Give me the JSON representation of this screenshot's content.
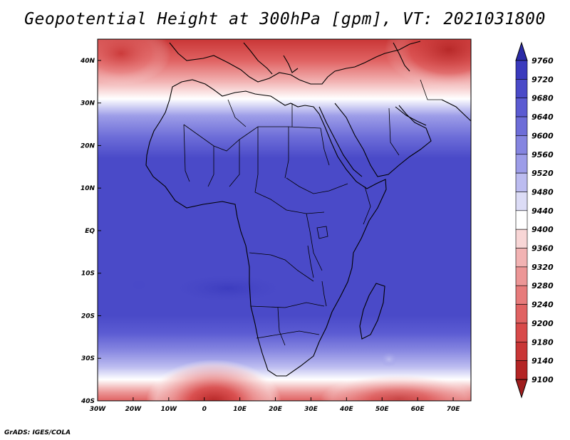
{
  "title": "Geopotential Height at 300hPa [gpm], VT: 2021031800",
  "footer": "GrADS: IGES/COLA",
  "chart_data": {
    "type": "heatmap",
    "variable": "Geopotential Height",
    "level": "300hPa",
    "units": "gpm",
    "valid_time": "2021031800",
    "xlim": [
      -30,
      75
    ],
    "ylim": [
      -40,
      45
    ],
    "x_ticks": [
      "30W",
      "20W",
      "10W",
      "0",
      "10E",
      "20E",
      "30E",
      "40E",
      "50E",
      "60E",
      "70E"
    ],
    "y_ticks": [
      "40S",
      "30S",
      "20S",
      "10S",
      "EQ",
      "10N",
      "20N",
      "30N",
      "40N"
    ],
    "colorbar": {
      "levels": [
        9100,
        9140,
        9180,
        9200,
        9240,
        9280,
        9320,
        9360,
        9400,
        9440,
        9480,
        9520,
        9560,
        9600,
        9640,
        9680,
        9720,
        9760
      ],
      "colors": [
        "#9f1d1d",
        "#b42525",
        "#c93636",
        "#d84a4a",
        "#e06262",
        "#e77b7b",
        "#ec9696",
        "#f2b3b3",
        "#f8d6d6",
        "#ffffff",
        "#dcdcf6",
        "#bcbcf0",
        "#9d9de8",
        "#8585e0",
        "#6d6dd8",
        "#5b5bd2",
        "#4a4ac8",
        "#3a3abd",
        "#2a2aa6"
      ]
    },
    "bands": [
      {
        "lat": 45,
        "value": 9140
      },
      {
        "lat": 40,
        "value": 9200
      },
      {
        "lat": 35,
        "value": 9320
      },
      {
        "lat": 31,
        "value": 9420
      },
      {
        "lat": 27,
        "value": 9520
      },
      {
        "lat": 22,
        "value": 9620
      },
      {
        "lat": 17,
        "value": 9680
      },
      {
        "lat": 0,
        "value": 9690
      },
      {
        "lat": -13,
        "value": 9700
      },
      {
        "lat": -20,
        "value": 9690
      },
      {
        "lat": -24,
        "value": 9650
      },
      {
        "lat": -28,
        "value": 9580
      },
      {
        "lat": -32,
        "value": 9500
      },
      {
        "lat": -35,
        "value": 9420
      },
      {
        "lat": -38,
        "value": 9300
      },
      {
        "lat": -40,
        "value": 9220
      }
    ]
  }
}
